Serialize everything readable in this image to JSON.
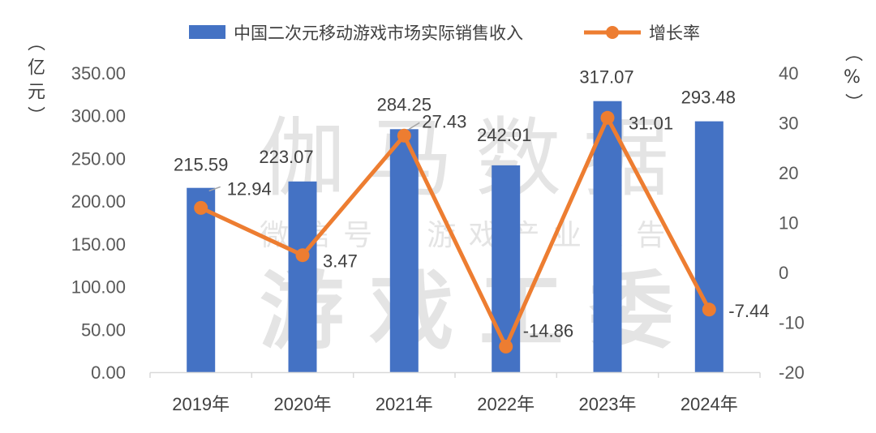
{
  "watermark": {
    "brand": "伽马数据",
    "wechat": "微信号：游戏产业报告",
    "org": "游戏工委"
  },
  "chart_data": {
    "type": "bar",
    "categories": [
      "2019年",
      "2020年",
      "2021年",
      "2022年",
      "2023年",
      "2024年"
    ],
    "series": [
      {
        "name": "中国二次元移动游戏市场实际销售收入",
        "type": "bar",
        "axis": "left",
        "values": [
          215.59,
          223.07,
          284.25,
          242.01,
          317.07,
          293.48
        ],
        "color": "#4472C4"
      },
      {
        "name": "增长率",
        "type": "line",
        "axis": "right",
        "values": [
          12.94,
          3.47,
          27.43,
          -14.86,
          31.01,
          -7.44
        ],
        "color": "#ED7D31"
      }
    ],
    "y_left": {
      "label": "（亿元）",
      "ylim": [
        0,
        350
      ],
      "ticks": [
        "0.00",
        "50.00",
        "100.00",
        "150.00",
        "200.00",
        "250.00",
        "300.00",
        "350.00"
      ]
    },
    "y_right": {
      "label": "（%）",
      "ylim": [
        -20,
        40
      ],
      "ticks": [
        "-20",
        "-10",
        "0",
        "10",
        "20",
        "30",
        "40"
      ]
    },
    "grid": false,
    "legend": "top"
  }
}
